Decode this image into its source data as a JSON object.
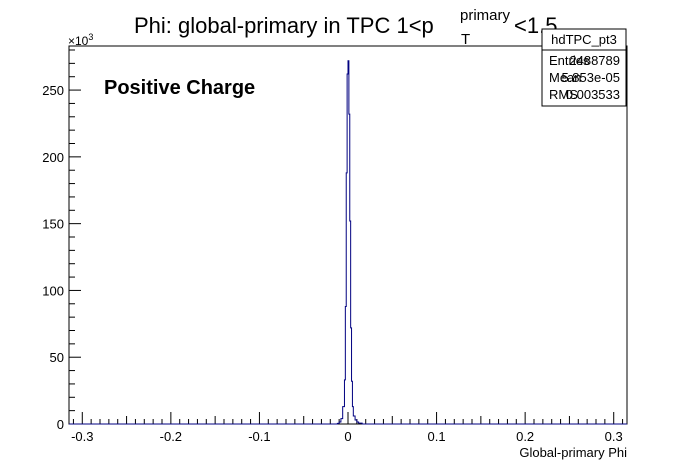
{
  "chart_data": {
    "type": "histogram",
    "title_main": "Phi: global-primary in TPC 1<p",
    "title_sup": "primary",
    "title_sub": "T",
    "title_tail": "<1.5",
    "xlabel": "Global-primary Phi",
    "ylabel": "",
    "y_multiplier": "×10",
    "y_multiplier_exp": "3",
    "annotation": "Positive Charge",
    "xlim": [
      -0.315,
      0.315
    ],
    "ylim": [
      0,
      283
    ],
    "x_ticks": [
      -0.3,
      -0.2,
      -0.1,
      0,
      0.1,
      0.2,
      0.3
    ],
    "x_tick_labels": [
      "-0.3",
      "-0.2",
      "-0.1",
      "0",
      "0.1",
      "0.2",
      "0.3"
    ],
    "y_ticks": [
      0,
      50,
      100,
      150,
      200,
      250
    ],
    "y_tick_labels": [
      "0",
      "50",
      "100",
      "150",
      "200",
      "250"
    ],
    "line_color": "#000080",
    "bins": [
      {
        "x0": -0.02,
        "x1": -0.012,
        "y": 0
      },
      {
        "x0": -0.012,
        "x1": -0.01,
        "y": 0.5
      },
      {
        "x0": -0.01,
        "x1": -0.008,
        "y": 1.5
      },
      {
        "x0": -0.008,
        "x1": -0.006,
        "y": 4
      },
      {
        "x0": -0.006,
        "x1": -0.004,
        "y": 13
      },
      {
        "x0": -0.004,
        "x1": -0.003,
        "y": 33
      },
      {
        "x0": -0.003,
        "x1": -0.002,
        "y": 88
      },
      {
        "x0": -0.002,
        "x1": -0.001,
        "y": 188
      },
      {
        "x0": -0.001,
        "x1": 0.0,
        "y": 262
      },
      {
        "x0": 0.0,
        "x1": 0.001,
        "y": 272
      },
      {
        "x0": 0.001,
        "x1": 0.002,
        "y": 232
      },
      {
        "x0": 0.002,
        "x1": 0.003,
        "y": 152
      },
      {
        "x0": 0.003,
        "x1": 0.004,
        "y": 72
      },
      {
        "x0": 0.004,
        "x1": 0.005,
        "y": 32
      },
      {
        "x0": 0.005,
        "x1": 0.006,
        "y": 13
      },
      {
        "x0": 0.006,
        "x1": 0.008,
        "y": 6
      },
      {
        "x0": 0.008,
        "x1": 0.01,
        "y": 3
      },
      {
        "x0": 0.01,
        "x1": 0.012,
        "y": 1.5
      },
      {
        "x0": 0.012,
        "x1": 0.016,
        "y": 0.7
      },
      {
        "x0": 0.016,
        "x1": 0.022,
        "y": 0
      }
    ]
  },
  "stats_box": {
    "name": "hdTPC_pt3",
    "rows": [
      {
        "label": "Entries",
        "value": "2488789"
      },
      {
        "label": "Mean",
        "value": "5.853e-05"
      },
      {
        "label": "RMS",
        "value": "0.003533"
      }
    ]
  }
}
